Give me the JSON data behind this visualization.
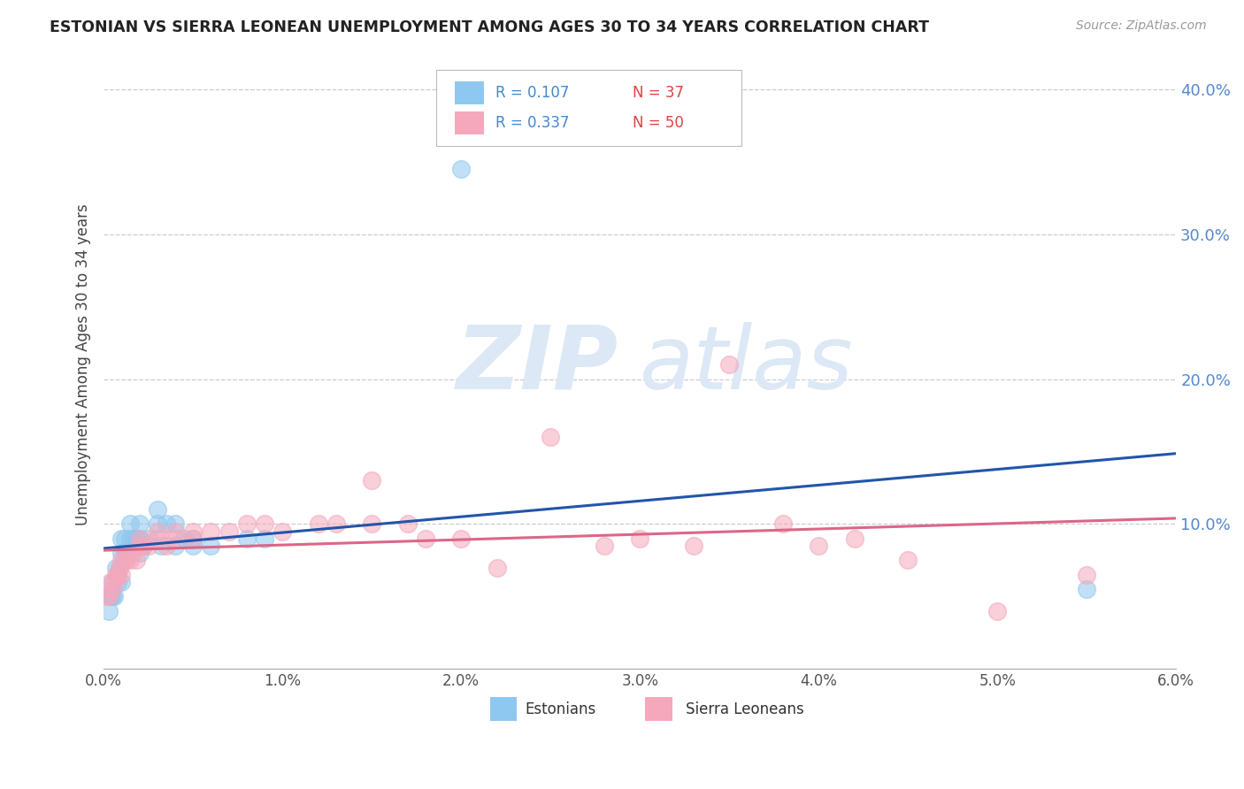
{
  "title": "ESTONIAN VS SIERRA LEONEAN UNEMPLOYMENT AMONG AGES 30 TO 34 YEARS CORRELATION CHART",
  "source": "Source: ZipAtlas.com",
  "ylabel": "Unemployment Among Ages 30 to 34 years",
  "xlim": [
    0.0,
    0.06
  ],
  "ylim": [
    0.0,
    0.42
  ],
  "xticks": [
    0.0,
    0.01,
    0.02,
    0.03,
    0.04,
    0.05,
    0.06
  ],
  "xticklabels": [
    "0.0%",
    "1.0%",
    "2.0%",
    "3.0%",
    "4.0%",
    "5.0%",
    "6.0%"
  ],
  "yticks": [
    0.0,
    0.1,
    0.2,
    0.3,
    0.4
  ],
  "yticklabels": [
    "",
    "10.0%",
    "20.0%",
    "30.0%",
    "40.0%"
  ],
  "grid_color": "#cccccc",
  "background_color": "#ffffff",
  "watermark_zip": "ZIP",
  "watermark_atlas": "atlas",
  "legend_r1": "R = 0.107",
  "legend_n1": "N = 37",
  "legend_r2": "R = 0.337",
  "legend_n2": "N = 50",
  "estonian_color": "#8ec8f0",
  "sierraleonean_color": "#f5a8bc",
  "estonian_line_color": "#2255aa",
  "sierraleonean_line_color": "#dd6688",
  "legend_r_color": "#4488cc",
  "legend_n_color": "#dd4444",
  "estonian_x": [
    0.0003,
    0.0004,
    0.0005,
    0.0005,
    0.0006,
    0.0007,
    0.0008,
    0.0009,
    0.001,
    0.001,
    0.001,
    0.0012,
    0.0012,
    0.0013,
    0.0015,
    0.0015,
    0.0016,
    0.0018,
    0.002,
    0.002,
    0.002,
    0.0022,
    0.0025,
    0.003,
    0.003,
    0.0032,
    0.0035,
    0.004,
    0.004,
    0.0045,
    0.005,
    0.005,
    0.006,
    0.008,
    0.009,
    0.02,
    0.055
  ],
  "estonian_y": [
    0.04,
    0.05,
    0.05,
    0.06,
    0.05,
    0.07,
    0.06,
    0.07,
    0.08,
    0.09,
    0.06,
    0.08,
    0.09,
    0.08,
    0.09,
    0.1,
    0.09,
    0.09,
    0.08,
    0.09,
    0.1,
    0.085,
    0.09,
    0.1,
    0.11,
    0.085,
    0.1,
    0.1,
    0.085,
    0.09,
    0.085,
    0.09,
    0.085,
    0.09,
    0.09,
    0.345,
    0.055
  ],
  "sierraleonean_x": [
    0.0002,
    0.0003,
    0.0004,
    0.0005,
    0.0006,
    0.0007,
    0.0008,
    0.0009,
    0.001,
    0.001,
    0.0012,
    0.0013,
    0.0015,
    0.0016,
    0.0018,
    0.002,
    0.002,
    0.0022,
    0.0025,
    0.003,
    0.003,
    0.0035,
    0.004,
    0.004,
    0.005,
    0.005,
    0.006,
    0.007,
    0.008,
    0.009,
    0.01,
    0.012,
    0.013,
    0.015,
    0.015,
    0.017,
    0.018,
    0.02,
    0.022,
    0.025,
    0.028,
    0.03,
    0.033,
    0.035,
    0.038,
    0.04,
    0.042,
    0.045,
    0.05,
    0.055
  ],
  "sierraleonean_y": [
    0.05,
    0.05,
    0.06,
    0.055,
    0.06,
    0.065,
    0.065,
    0.07,
    0.075,
    0.065,
    0.075,
    0.075,
    0.075,
    0.08,
    0.075,
    0.085,
    0.09,
    0.085,
    0.085,
    0.09,
    0.095,
    0.085,
    0.09,
    0.095,
    0.09,
    0.095,
    0.095,
    0.095,
    0.1,
    0.1,
    0.095,
    0.1,
    0.1,
    0.13,
    0.1,
    0.1,
    0.09,
    0.09,
    0.07,
    0.16,
    0.085,
    0.09,
    0.085,
    0.21,
    0.1,
    0.085,
    0.09,
    0.075,
    0.04,
    0.065
  ]
}
